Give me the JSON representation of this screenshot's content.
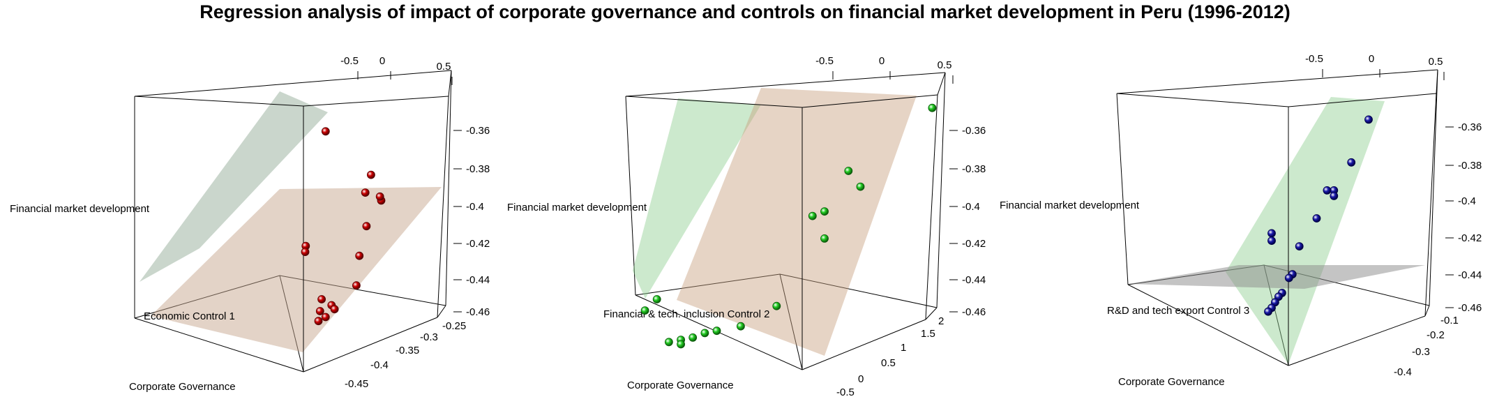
{
  "title": "Regression analysis of impact of corporate governance and controls on financial market development in Peru (1996-2012)",
  "colors": {
    "box": "#000000",
    "plane_beige": "#c8a07f",
    "plane_green_1": "#7fa58a",
    "plane_green_2": "#8fcf90",
    "plane_gray": "#8a8a8a"
  },
  "chart_data": [
    {
      "type": "scatter",
      "zlabel": "Financial market development",
      "xlabel": "Corporate Governance",
      "ylabel": "Economic Control 1",
      "top_ticks": [
        "-0.5",
        "0",
        "0.5"
      ],
      "z_ticks": [
        "-0.36",
        "-0.38",
        "-0.4",
        "-0.42",
        "-0.44",
        "-0.46"
      ],
      "x_ticks": [
        "-0.25",
        "-0.3",
        "-0.35",
        "-0.4",
        "-0.45"
      ],
      "point_color": "#cc0000",
      "point_edge": "#550000",
      "planes": [
        {
          "color": "#8aa58f",
          "opacity": 0.45
        },
        {
          "color": "#c8a890",
          "opacity": 0.5
        }
      ],
      "points": [
        {
          "x": -0.42,
          "y": 0.3,
          "z": -0.362
        },
        {
          "x": -0.3,
          "y": 0.05,
          "z": -0.384
        },
        {
          "x": -0.31,
          "y": 0.0,
          "z": -0.393
        },
        {
          "x": -0.28,
          "y": 0.1,
          "z": -0.397
        },
        {
          "x": -0.27,
          "y": -0.1,
          "z": -0.395
        },
        {
          "x": -0.32,
          "y": 0.2,
          "z": -0.41
        },
        {
          "x": -0.44,
          "y": -0.1,
          "z": -0.42
        },
        {
          "x": -0.44,
          "y": -0.12,
          "z": -0.423
        },
        {
          "x": -0.33,
          "y": 0.1,
          "z": -0.425
        },
        {
          "x": -0.34,
          "y": 0.15,
          "z": -0.44
        },
        {
          "x": -0.41,
          "y": 0.0,
          "z": -0.447
        },
        {
          "x": -0.4,
          "y": 0.2,
          "z": -0.45
        },
        {
          "x": -0.39,
          "y": 0.15,
          "z": -0.452
        },
        {
          "x": -0.42,
          "y": 0.1,
          "z": -0.453
        },
        {
          "x": -0.42,
          "y": 0.3,
          "z": -0.456
        },
        {
          "x": -0.43,
          "y": 0.2,
          "z": -0.458
        }
      ]
    },
    {
      "type": "scatter",
      "zlabel": "Financial market development",
      "xlabel": "Corporate Governance",
      "ylabel": "Financial & tech. inclusion Control 2",
      "top_ticks": [
        "-0.5",
        "0",
        "0.5"
      ],
      "z_ticks": [
        "-0.36",
        "-0.38",
        "-0.4",
        "-0.42",
        "-0.44",
        "-0.46"
      ],
      "x_ticks": [
        "2",
        "1.5",
        "1",
        "0.5",
        "0",
        "-0.5"
      ],
      "point_color": "#22cc22",
      "point_edge": "#0a5a0a",
      "planes": [
        {
          "color": "#8fcf90",
          "opacity": 0.45
        },
        {
          "color": "#c8a07f",
          "opacity": 0.45
        }
      ],
      "points": [
        {
          "x": 1.9,
          "y": 0.5,
          "z": -0.355
        },
        {
          "x": 1.2,
          "y": 0.1,
          "z": -0.383
        },
        {
          "x": 1.3,
          "y": 0.2,
          "z": -0.39
        },
        {
          "x": 0.9,
          "y": -0.1,
          "z": -0.403
        },
        {
          "x": 1.0,
          "y": 0.0,
          "z": -0.401
        },
        {
          "x": 1.0,
          "y": 0.1,
          "z": -0.413
        },
        {
          "x": -0.4,
          "y": -0.3,
          "z": -0.44
        },
        {
          "x": -0.5,
          "y": -0.2,
          "z": -0.445
        },
        {
          "x": 0.6,
          "y": 0.1,
          "z": -0.443
        },
        {
          "x": 0.3,
          "y": 0.0,
          "z": -0.452
        },
        {
          "x": 0.1,
          "y": -0.1,
          "z": -0.454
        },
        {
          "x": 0.0,
          "y": 0.0,
          "z": -0.455
        },
        {
          "x": -0.1,
          "y": 0.1,
          "z": -0.457
        },
        {
          "x": -0.2,
          "y": 0.0,
          "z": -0.458
        },
        {
          "x": -0.2,
          "y": 0.1,
          "z": -0.46
        },
        {
          "x": -0.3,
          "y": 0.1,
          "z": -0.459
        }
      ]
    },
    {
      "type": "scatter",
      "zlabel": "Financial market development",
      "xlabel": "Corporate Governance",
      "ylabel": "R&D and tech export Control 3",
      "top_ticks": [
        "-0.5",
        "0",
        "0.5"
      ],
      "z_ticks": [
        "-0.36",
        "-0.38",
        "-0.4",
        "-0.42",
        "-0.44",
        "-0.46"
      ],
      "x_ticks": [
        "-0.1",
        "-0.2",
        "-0.3",
        "-0.4"
      ],
      "point_color": "#1a1aaa",
      "point_edge": "#000044",
      "planes": [
        {
          "color": "#8fcf90",
          "opacity": 0.45
        },
        {
          "color": "#8a8a8a",
          "opacity": 0.5
        }
      ],
      "points": [
        {
          "x": -0.1,
          "y": -0.2,
          "z": -0.357
        },
        {
          "x": -0.15,
          "y": 0.0,
          "z": -0.38
        },
        {
          "x": -0.2,
          "y": -0.1,
          "z": -0.395
        },
        {
          "x": -0.2,
          "y": 0.05,
          "z": -0.398
        },
        {
          "x": -0.22,
          "y": 0.1,
          "z": -0.395
        },
        {
          "x": -0.25,
          "y": 0.0,
          "z": -0.41
        },
        {
          "x": -0.38,
          "y": -0.2,
          "z": -0.418
        },
        {
          "x": -0.38,
          "y": -0.22,
          "z": -0.422
        },
        {
          "x": -0.3,
          "y": 0.1,
          "z": -0.425
        },
        {
          "x": -0.32,
          "y": 0.2,
          "z": -0.44
        },
        {
          "x": -0.33,
          "y": 0.15,
          "z": -0.442
        },
        {
          "x": -0.35,
          "y": 0.2,
          "z": -0.45
        },
        {
          "x": -0.36,
          "y": 0.25,
          "z": -0.452
        },
        {
          "x": -0.37,
          "y": 0.3,
          "z": -0.455
        },
        {
          "x": -0.38,
          "y": 0.3,
          "z": -0.458
        },
        {
          "x": -0.39,
          "y": 0.2,
          "z": -0.46
        }
      ]
    }
  ]
}
